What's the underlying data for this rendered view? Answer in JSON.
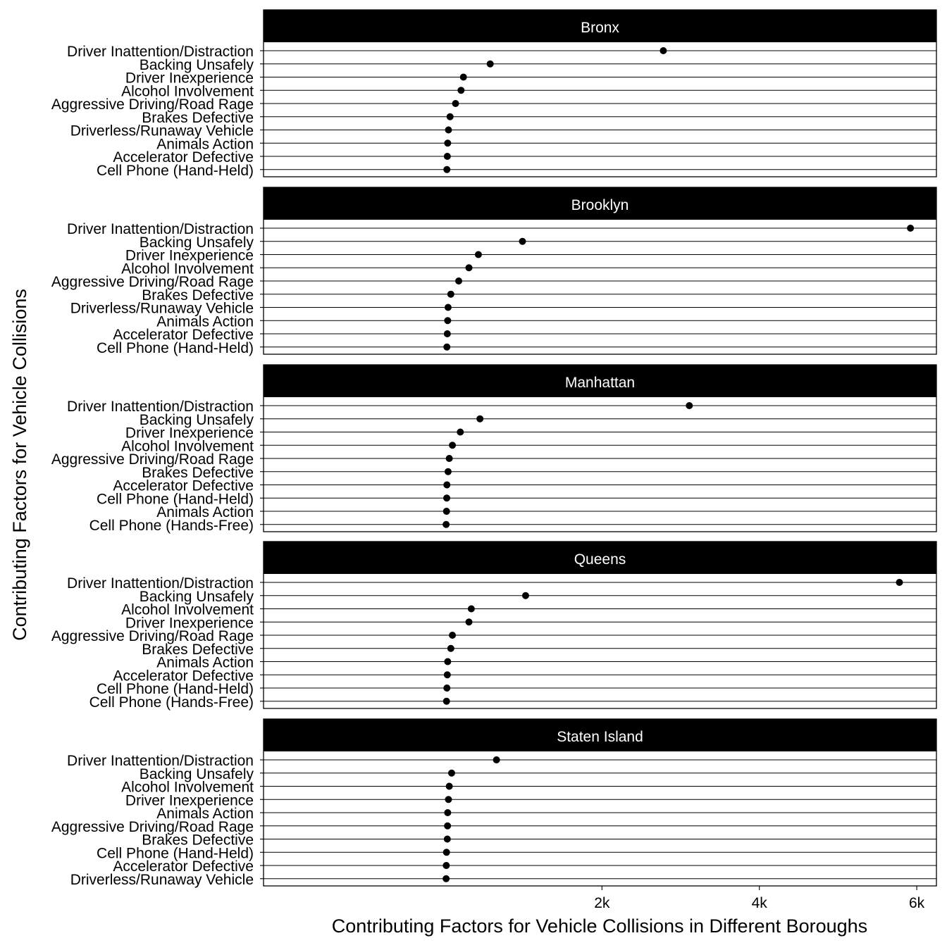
{
  "chart_data": {
    "type": "scatter",
    "xlabel": "Contributing Factors for Vehicle Collisions in Different Boroughs",
    "ylabel": "Contributing Factors for Vehicle Collisions",
    "x_ticks": [
      {
        "value": 2000,
        "label": "2k"
      },
      {
        "value": 4000,
        "label": "4k"
      },
      {
        "value": 6000,
        "label": "6k"
      }
    ],
    "xlim": [
      -2300,
      6250
    ],
    "grid": "horizontal lines only",
    "point_color": "#000000",
    "strip_color": "#000000",
    "strip_text_color": "#ffffff",
    "panels": [
      {
        "borough": "Bronx",
        "points": [
          {
            "factor": "Driver Inattention/Distraction",
            "value": 2780
          },
          {
            "factor": "Backing Unsafely",
            "value": 580
          },
          {
            "factor": "Driver Inexperience",
            "value": 240
          },
          {
            "factor": "Alcohol Involvement",
            "value": 210
          },
          {
            "factor": "Aggressive Driving/Road Rage",
            "value": 140
          },
          {
            "factor": "Brakes Defective",
            "value": 70
          },
          {
            "factor": "Driverless/Runaway Vehicle",
            "value": 50
          },
          {
            "factor": "Animals Action",
            "value": 40
          },
          {
            "factor": "Accelerator Defective",
            "value": 35
          },
          {
            "factor": "Cell Phone (Hand-Held)",
            "value": 30
          }
        ]
      },
      {
        "borough": "Brooklyn",
        "points": [
          {
            "factor": "Driver Inattention/Distraction",
            "value": 5920
          },
          {
            "factor": "Backing Unsafely",
            "value": 990
          },
          {
            "factor": "Driver Inexperience",
            "value": 430
          },
          {
            "factor": "Alcohol Involvement",
            "value": 310
          },
          {
            "factor": "Aggressive Driving/Road Rage",
            "value": 180
          },
          {
            "factor": "Brakes Defective",
            "value": 80
          },
          {
            "factor": "Driverless/Runaway Vehicle",
            "value": 45
          },
          {
            "factor": "Animals Action",
            "value": 40
          },
          {
            "factor": "Accelerator Defective",
            "value": 35
          },
          {
            "factor": "Cell Phone (Hand-Held)",
            "value": 30
          }
        ]
      },
      {
        "borough": "Manhattan",
        "points": [
          {
            "factor": "Driver Inattention/Distraction",
            "value": 3110
          },
          {
            "factor": "Backing Unsafely",
            "value": 450
          },
          {
            "factor": "Driver Inexperience",
            "value": 200
          },
          {
            "factor": "Alcohol Involvement",
            "value": 100
          },
          {
            "factor": "Aggressive Driving/Road Rage",
            "value": 60
          },
          {
            "factor": "Brakes Defective",
            "value": 45
          },
          {
            "factor": "Accelerator Defective",
            "value": 30
          },
          {
            "factor": "Cell Phone (Hand-Held)",
            "value": 28
          },
          {
            "factor": "Animals Action",
            "value": 25
          },
          {
            "factor": "Cell Phone (Hands-Free)",
            "value": 20
          }
        ]
      },
      {
        "borough": "Queens",
        "points": [
          {
            "factor": "Driver Inattention/Distraction",
            "value": 5780
          },
          {
            "factor": "Backing Unsafely",
            "value": 1030
          },
          {
            "factor": "Alcohol Involvement",
            "value": 340
          },
          {
            "factor": "Driver Inexperience",
            "value": 310
          },
          {
            "factor": "Aggressive Driving/Road Rage",
            "value": 100
          },
          {
            "factor": "Brakes Defective",
            "value": 80
          },
          {
            "factor": "Animals Action",
            "value": 40
          },
          {
            "factor": "Accelerator Defective",
            "value": 35
          },
          {
            "factor": "Cell Phone (Hand-Held)",
            "value": 30
          },
          {
            "factor": "Cell Phone (Hands-Free)",
            "value": 25
          }
        ]
      },
      {
        "borough": "Staten Island",
        "points": [
          {
            "factor": "Driver Inattention/Distraction",
            "value": 660
          },
          {
            "factor": "Backing Unsafely",
            "value": 90
          },
          {
            "factor": "Alcohol Involvement",
            "value": 60
          },
          {
            "factor": "Driver Inexperience",
            "value": 50
          },
          {
            "factor": "Animals Action",
            "value": 40
          },
          {
            "factor": "Aggressive Driving/Road Rage",
            "value": 38
          },
          {
            "factor": "Brakes Defective",
            "value": 35
          },
          {
            "factor": "Cell Phone (Hand-Held)",
            "value": 25
          },
          {
            "factor": "Accelerator Defective",
            "value": 22
          },
          {
            "factor": "Driverless/Runaway Vehicle",
            "value": 20
          }
        ]
      }
    ]
  }
}
